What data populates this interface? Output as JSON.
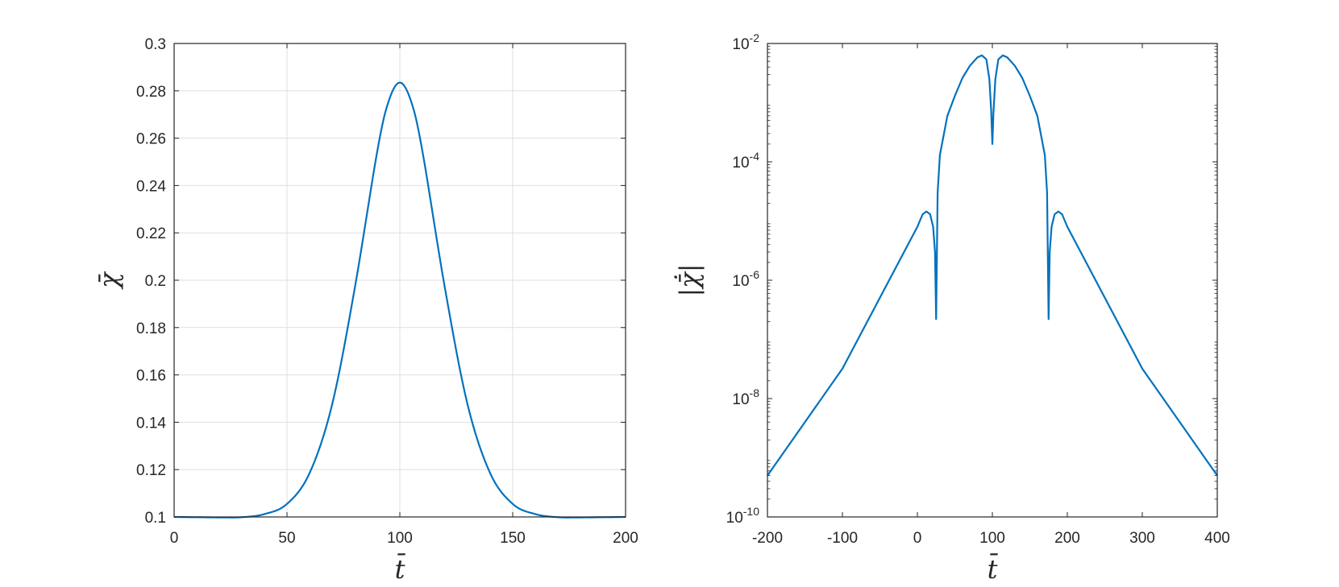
{
  "chart_data": [
    {
      "type": "line",
      "title": "",
      "xlabel": "t̄",
      "ylabel": "χ̄",
      "xlim": [
        0,
        200
      ],
      "ylim": [
        0.1,
        0.3
      ],
      "yscale": "linear",
      "grid": true,
      "xticks": [
        0,
        50,
        100,
        150,
        200
      ],
      "xtick_labels": [
        "0",
        "50",
        "100",
        "150",
        "200"
      ],
      "yticks": [
        0.1,
        0.12,
        0.14,
        0.16,
        0.18,
        0.2,
        0.22,
        0.24,
        0.26,
        0.28,
        0.3
      ],
      "ytick_labels": [
        "0.1",
        "0.12",
        "0.14",
        "0.16",
        "0.18",
        "0.2",
        "0.22",
        "0.24",
        "0.26",
        "0.28",
        "0.3"
      ],
      "series": [
        {
          "color": "#0072BD",
          "points": [
            [
              0,
              0.1
            ],
            [
              20,
              0.0998
            ],
            [
              30,
              0.0999
            ],
            [
              40,
              0.1012
            ],
            [
              50,
              0.1055
            ],
            [
              60,
              0.1185
            ],
            [
              70,
              0.1475
            ],
            [
              80,
              0.1965
            ],
            [
              90,
              0.2545
            ],
            [
              95,
              0.2755
            ],
            [
              100,
              0.2835
            ],
            [
              105,
              0.2755
            ],
            [
              110,
              0.2545
            ],
            [
              120,
              0.1965
            ],
            [
              130,
              0.1475
            ],
            [
              140,
              0.1185
            ],
            [
              150,
              0.1055
            ],
            [
              160,
              0.1012
            ],
            [
              170,
              0.0999
            ],
            [
              180,
              0.0998
            ],
            [
              200,
              0.1
            ]
          ]
        }
      ]
    },
    {
      "type": "line",
      "title": "",
      "xlabel": "t̄",
      "ylabel": "|χ̄̇|",
      "xlim": [
        -200,
        400
      ],
      "ylim": [
        1e-10,
        0.01
      ],
      "yscale": "log",
      "grid": false,
      "xticks": [
        -200,
        -100,
        0,
        100,
        200,
        300,
        400
      ],
      "xtick_labels": [
        "-200",
        "-100",
        "0",
        "100",
        "200",
        "300",
        "400"
      ],
      "yticks": [
        -10,
        -8,
        -6,
        -4,
        -2
      ],
      "ytick_labels": [
        "10",
        "10",
        "10",
        "10",
        "10"
      ],
      "ytick_exponents": [
        "-10",
        "-8",
        "-6",
        "-4",
        "-2"
      ],
      "series": [
        {
          "color": "#0072BD",
          "points": [
            [
              -200,
              5e-10
            ],
            [
              -100,
              3.2e-08
            ],
            [
              0,
              8e-06
            ],
            [
              7,
              1.3e-05
            ],
            [
              12,
              1.45e-05
            ],
            [
              17,
              1.3e-05
            ],
            [
              21,
              8e-06
            ],
            [
              23.5,
              3e-06
            ],
            [
              25,
              2.2e-07
            ],
            [
              27,
              3e-05
            ],
            [
              30,
              0.00013
            ],
            [
              40,
              0.0006
            ],
            [
              50,
              0.0013
            ],
            [
              60,
              0.0026
            ],
            [
              70,
              0.0042
            ],
            [
              80,
              0.0058
            ],
            [
              86,
              0.0063
            ],
            [
              92,
              0.0054
            ],
            [
              96,
              0.0025
            ],
            [
              98.5,
              0.0007
            ],
            [
              100,
              0.0002
            ],
            [
              101.5,
              0.0007
            ],
            [
              104,
              0.0025
            ],
            [
              108,
              0.0054
            ],
            [
              114,
              0.0063
            ],
            [
              120,
              0.0058
            ],
            [
              130,
              0.0042
            ],
            [
              140,
              0.0026
            ],
            [
              150,
              0.0013
            ],
            [
              160,
              0.0006
            ],
            [
              170,
              0.00013
            ],
            [
              173,
              3e-05
            ],
            [
              175,
              2.2e-07
            ],
            [
              176.5,
              3e-06
            ],
            [
              179,
              8e-06
            ],
            [
              183,
              1.3e-05
            ],
            [
              188,
              1.45e-05
            ],
            [
              193,
              1.3e-05
            ],
            [
              200,
              8e-06
            ],
            [
              300,
              3.2e-08
            ],
            [
              400,
              5e-10
            ]
          ]
        }
      ]
    }
  ]
}
